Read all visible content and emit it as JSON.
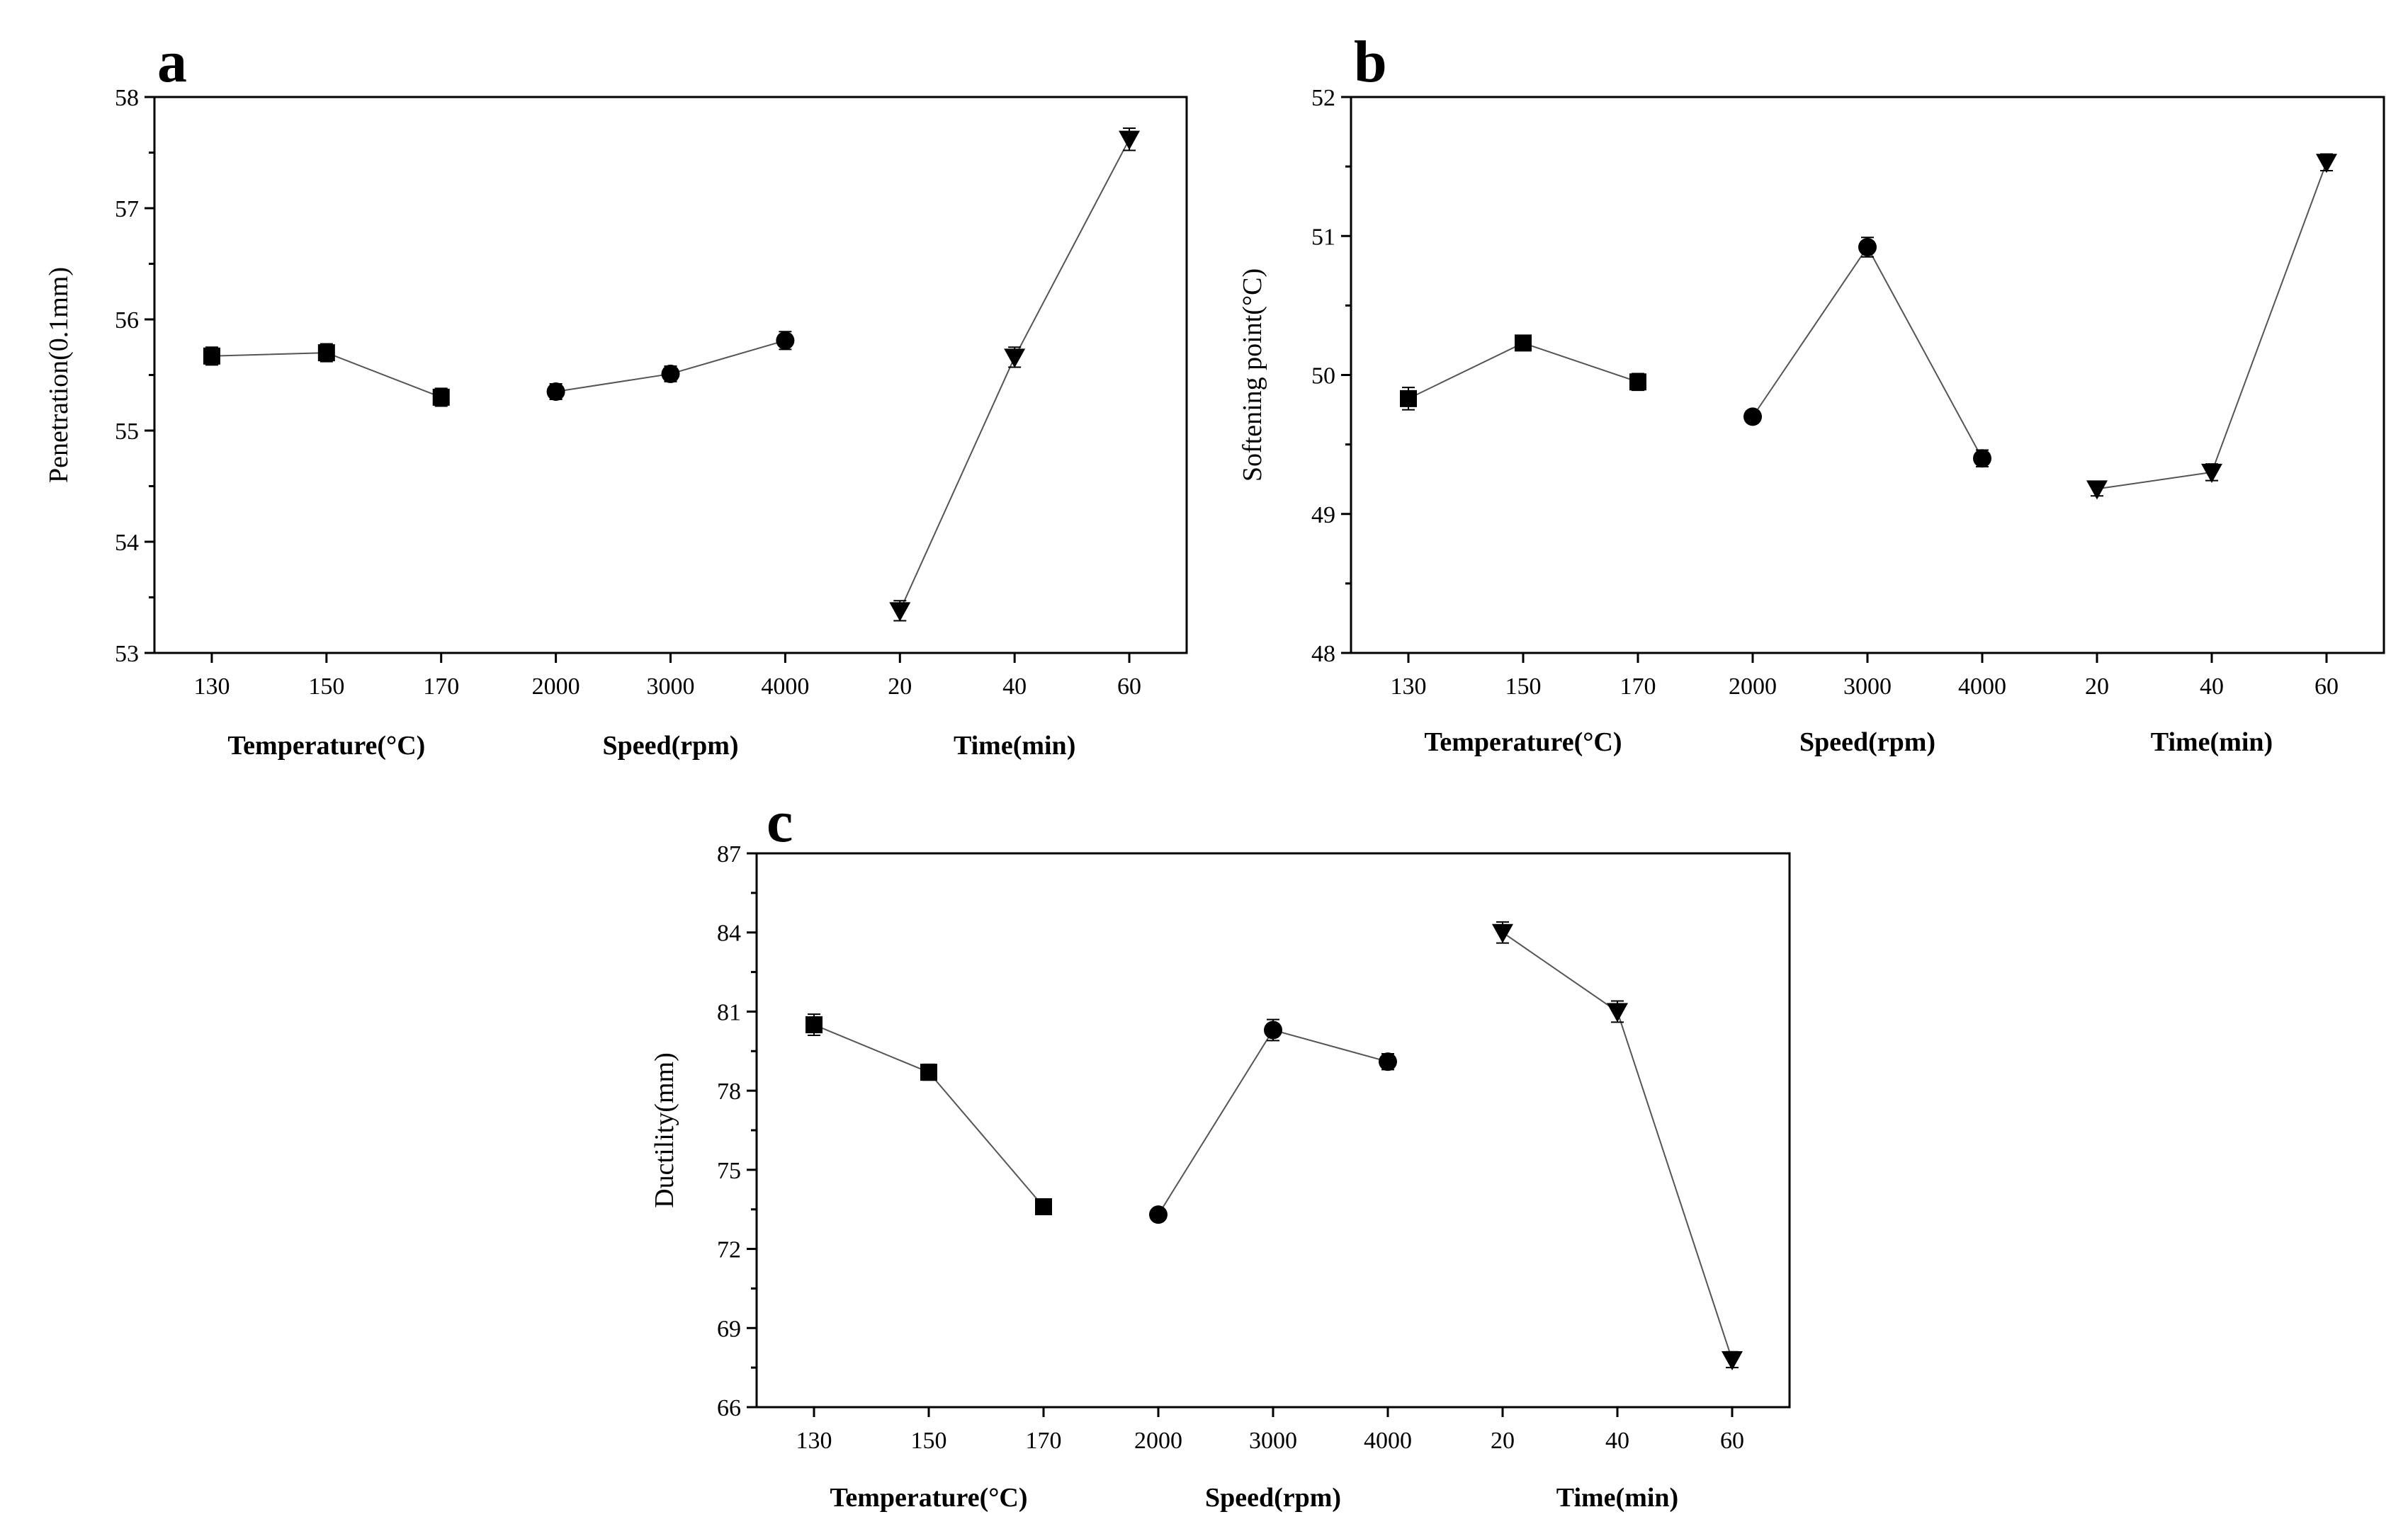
{
  "chart_data": [
    {
      "panel": "a",
      "type": "line",
      "ylabel": "Penetration(0.1mm)",
      "ylim": [
        53,
        58
      ],
      "yticks": [
        "53",
        "54",
        "55",
        "56",
        "57",
        "58"
      ],
      "groups": [
        {
          "label": "Temperature(°C)",
          "marker": "square",
          "categories": [
            "130",
            "150",
            "170"
          ],
          "values": [
            55.67,
            55.7,
            55.3
          ],
          "errors": [
            0.08,
            0.08,
            0.08
          ]
        },
        {
          "label": "Speed(rpm)",
          "marker": "circle",
          "categories": [
            "2000",
            "3000",
            "4000"
          ],
          "values": [
            55.35,
            55.51,
            55.81
          ],
          "errors": [
            0.07,
            0.07,
            0.08
          ]
        },
        {
          "label": "Time(min)",
          "marker": "triangle-down",
          "categories": [
            "20",
            "40",
            "60"
          ],
          "values": [
            53.38,
            55.66,
            57.62
          ],
          "errors": [
            0.09,
            0.09,
            0.1
          ]
        }
      ]
    },
    {
      "panel": "b",
      "type": "line",
      "ylabel": "Softening point(°C)",
      "ylim": [
        48,
        52
      ],
      "yticks": [
        "48",
        "49",
        "50",
        "51",
        "52"
      ],
      "groups": [
        {
          "label": "Temperature(°C)",
          "marker": "square",
          "categories": [
            "130",
            "150",
            "170"
          ],
          "values": [
            49.83,
            50.23,
            49.95
          ],
          "errors": [
            0.08,
            0.05,
            0.06
          ]
        },
        {
          "label": "Speed(rpm)",
          "marker": "circle",
          "categories": [
            "2000",
            "3000",
            "4000"
          ],
          "values": [
            49.7,
            50.92,
            49.4
          ],
          "errors": [
            0.03,
            0.07,
            0.06
          ]
        },
        {
          "label": "Time(min)",
          "marker": "triangle-down",
          "categories": [
            "20",
            "40",
            "60"
          ],
          "values": [
            49.18,
            49.3,
            51.53
          ],
          "errors": [
            0.05,
            0.06,
            0.06
          ]
        }
      ]
    },
    {
      "panel": "c",
      "type": "line",
      "ylabel": "Ductility(mm)",
      "ylim": [
        66,
        87
      ],
      "yticks": [
        "66",
        "69",
        "72",
        "75",
        "78",
        "81",
        "84",
        "87"
      ],
      "groups": [
        {
          "label": "Temperature(°C)",
          "marker": "square",
          "categories": [
            "130",
            "150",
            "170"
          ],
          "values": [
            80.5,
            78.7,
            73.6
          ],
          "errors": [
            0.4,
            0.3,
            0.2
          ]
        },
        {
          "label": "Speed(rpm)",
          "marker": "circle",
          "categories": [
            "2000",
            "3000",
            "4000"
          ],
          "values": [
            73.3,
            80.3,
            79.1
          ],
          "errors": [
            0.2,
            0.4,
            0.3
          ]
        },
        {
          "label": "Time(min)",
          "marker": "triangle-down",
          "categories": [
            "20",
            "40",
            "60"
          ],
          "values": [
            84.0,
            81.0,
            67.8
          ],
          "errors": [
            0.4,
            0.4,
            0.3
          ]
        }
      ]
    }
  ]
}
